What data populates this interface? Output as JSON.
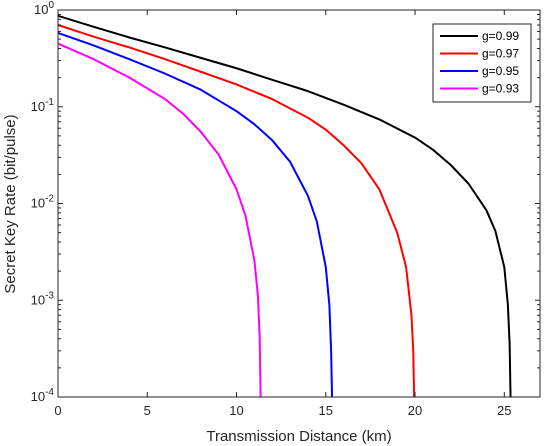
{
  "chart_data": {
    "type": "line",
    "title": "",
    "xlabel": "Transmission Distance (km)",
    "ylabel": "Secret Key Rate (bit/pulse)",
    "xlim": [
      0,
      27
    ],
    "ylim": [
      0.0001,
      1
    ],
    "yscale": "log",
    "x_ticks": [
      0,
      5,
      10,
      15,
      20,
      25
    ],
    "x_tick_labels": [
      "0",
      "5",
      "10",
      "15",
      "20",
      "25"
    ],
    "y_ticks": [
      0.0001,
      0.001,
      0.01,
      0.1,
      1
    ],
    "y_tick_labels": [
      {
        "base": "10",
        "exp": "-4"
      },
      {
        "base": "10",
        "exp": "-3"
      },
      {
        "base": "10",
        "exp": "-2"
      },
      {
        "base": "10",
        "exp": "-1"
      },
      {
        "base": "10",
        "exp": "0"
      }
    ],
    "grid": false,
    "legend": "top-right",
    "series": [
      {
        "name": "g=0.99",
        "color": "#000000",
        "x": [
          0,
          2,
          4,
          6,
          8,
          10,
          12,
          14,
          16,
          18,
          20,
          21,
          22,
          23,
          24,
          24.5,
          25,
          25.2,
          25.3,
          25.35
        ],
        "y": [
          0.87,
          0.67,
          0.52,
          0.41,
          0.32,
          0.25,
          0.19,
          0.145,
          0.105,
          0.074,
          0.048,
          0.036,
          0.025,
          0.016,
          0.0085,
          0.0052,
          0.0022,
          0.0009,
          0.00035,
          0.0001
        ]
      },
      {
        "name": "g=0.97",
        "color": "#ff0000",
        "x": [
          0,
          2,
          4,
          6,
          8,
          10,
          12,
          14,
          15,
          16,
          17,
          18,
          19,
          19.5,
          19.8,
          19.9,
          19.95
        ],
        "y": [
          0.7,
          0.53,
          0.41,
          0.31,
          0.23,
          0.17,
          0.12,
          0.077,
          0.058,
          0.04,
          0.026,
          0.014,
          0.005,
          0.0022,
          0.0007,
          0.0003,
          0.0001
        ]
      },
      {
        "name": "g=0.95",
        "color": "#0000ff",
        "x": [
          0,
          2,
          4,
          6,
          8,
          10,
          11,
          12,
          13,
          14,
          14.5,
          15,
          15.2,
          15.3,
          15.35
        ],
        "y": [
          0.58,
          0.43,
          0.31,
          0.22,
          0.15,
          0.09,
          0.066,
          0.045,
          0.027,
          0.012,
          0.0065,
          0.0022,
          0.0009,
          0.0003,
          0.0001
        ]
      },
      {
        "name": "g=0.93",
        "color": "#ff00ff",
        "x": [
          0,
          2,
          4,
          6,
          7,
          8,
          9,
          10,
          10.5,
          11,
          11.2,
          11.3,
          11.35
        ],
        "y": [
          0.45,
          0.31,
          0.2,
          0.12,
          0.085,
          0.055,
          0.032,
          0.014,
          0.0075,
          0.0026,
          0.0011,
          0.0004,
          0.0001
        ]
      }
    ]
  }
}
